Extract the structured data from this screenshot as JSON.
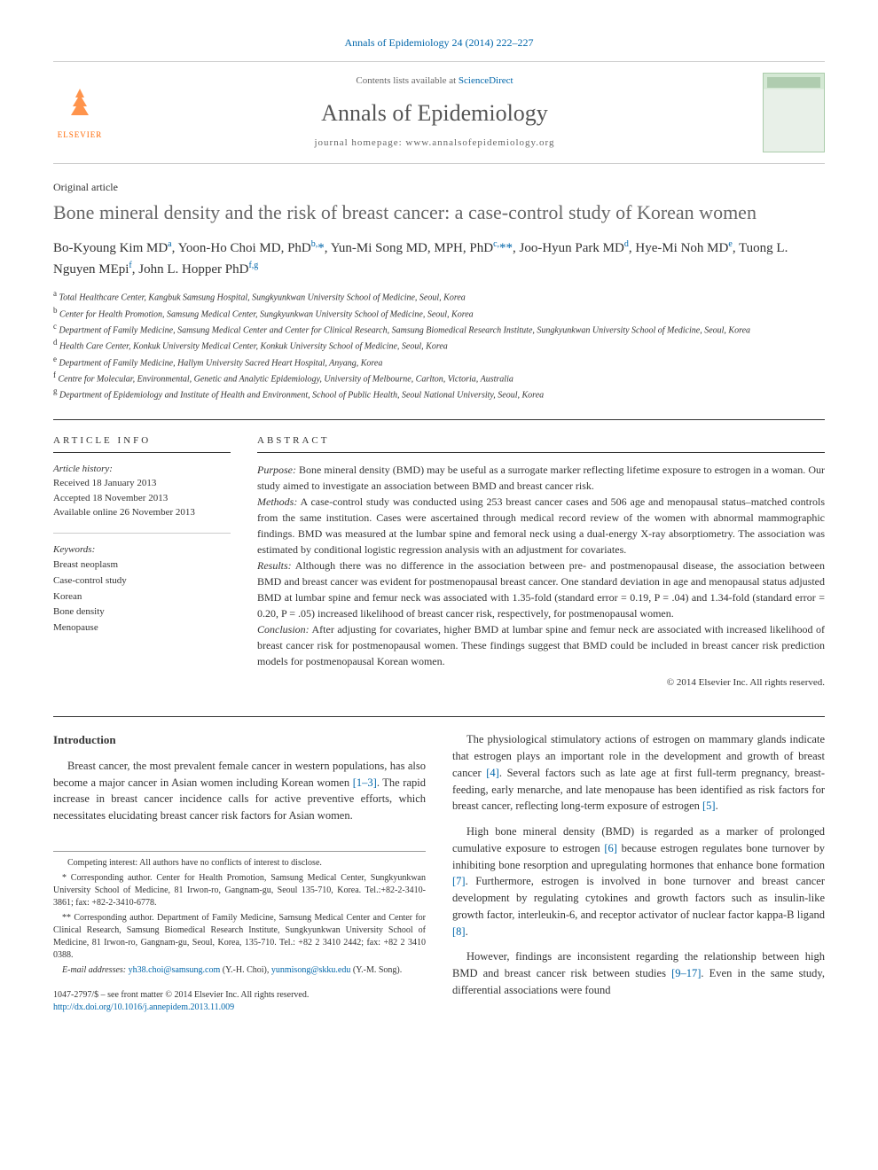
{
  "journal_ref": "Annals of Epidemiology 24 (2014) 222–227",
  "header": {
    "contents_prefix": "Contents lists available at ",
    "contents_link": "ScienceDirect",
    "journal_name": "Annals of Epidemiology",
    "homepage_prefix": "journal homepage: ",
    "homepage_url": "www.annalsofepidemiology.org",
    "elsevier": "ELSEVIER"
  },
  "article_type": "Original article",
  "title": "Bone mineral density and the risk of breast cancer: a case-control study of Korean women",
  "authors_html": "Bo-Kyoung Kim MD<sup>a</sup>, Yoon-Ho Choi MD, PhD<sup>b,</sup><span class='star'>*</span>, Yun-Mi Song MD, MPH, PhD<sup>c,</sup><span class='star'>**</span>, Joo-Hyun Park MD<sup>d</sup>, Hye-Mi Noh MD<sup>e</sup>, Tuong L. Nguyen MEpi<sup>f</sup>, John L. Hopper PhD<sup>f,g</sup>",
  "affiliations": [
    {
      "sup": "a",
      "text": "Total Healthcare Center, Kangbuk Samsung Hospital, Sungkyunkwan University School of Medicine, Seoul, Korea"
    },
    {
      "sup": "b",
      "text": "Center for Health Promotion, Samsung Medical Center, Sungkyunkwan University School of Medicine, Seoul, Korea"
    },
    {
      "sup": "c",
      "text": "Department of Family Medicine, Samsung Medical Center and Center for Clinical Research, Samsung Biomedical Research Institute, Sungkyunkwan University School of Medicine, Seoul, Korea"
    },
    {
      "sup": "d",
      "text": "Health Care Center, Konkuk University Medical Center, Konkuk University School of Medicine, Seoul, Korea"
    },
    {
      "sup": "e",
      "text": "Department of Family Medicine, Hallym University Sacred Heart Hospital, Anyang, Korea"
    },
    {
      "sup": "f",
      "text": "Centre for Molecular, Environmental, Genetic and Analytic Epidemiology, University of Melbourne, Carlton, Victoria, Australia"
    },
    {
      "sup": "g",
      "text": "Department of Epidemiology and Institute of Health and Environment, School of Public Health, Seoul National University, Seoul, Korea"
    }
  ],
  "info": {
    "header": "ARTICLE INFO",
    "history_label": "Article history:",
    "received": "Received 18 January 2013",
    "accepted": "Accepted 18 November 2013",
    "online": "Available online 26 November 2013",
    "keywords_label": "Keywords:",
    "keywords": [
      "Breast neoplasm",
      "Case-control study",
      "Korean",
      "Bone density",
      "Menopause"
    ]
  },
  "abstract": {
    "header": "ABSTRACT",
    "segments": [
      {
        "label": "Purpose:",
        "text": " Bone mineral density (BMD) may be useful as a surrogate marker reflecting lifetime exposure to estrogen in a woman. Our study aimed to investigate an association between BMD and breast cancer risk."
      },
      {
        "label": "Methods:",
        "text": " A case-control study was conducted using 253 breast cancer cases and 506 age and menopausal status–matched controls from the same institution. Cases were ascertained through medical record review of the women with abnormal mammographic findings. BMD was measured at the lumbar spine and femoral neck using a dual-energy X-ray absorptiometry. The association was estimated by conditional logistic regression analysis with an adjustment for covariates."
      },
      {
        "label": "Results:",
        "text": " Although there was no difference in the association between pre- and postmenopausal disease, the association between BMD and breast cancer was evident for postmenopausal breast cancer. One standard deviation in age and menopausal status adjusted BMD at lumbar spine and femur neck was associated with 1.35-fold (standard error = 0.19, P = .04) and 1.34-fold (standard error = 0.20, P = .05) increased likelihood of breast cancer risk, respectively, for postmenopausal women."
      },
      {
        "label": "Conclusion:",
        "text": " After adjusting for covariates, higher BMD at lumbar spine and femur neck are associated with increased likelihood of breast cancer risk for postmenopausal women. These findings suggest that BMD could be included in breast cancer risk prediction models for postmenopausal Korean women."
      }
    ],
    "copyright": "© 2014 Elsevier Inc. All rights reserved."
  },
  "intro": {
    "heading": "Introduction",
    "p1_a": "Breast cancer, the most prevalent female cancer in western populations, has also become a major cancer in Asian women including Korean women ",
    "p1_ref1": "[1–3]",
    "p1_b": ". The rapid increase in breast cancer incidence calls for active preventive efforts, which necessitates elucidating breast cancer risk factors for Asian women.",
    "p2_a": "The physiological stimulatory actions of estrogen on mammary glands indicate that estrogen plays an important role in the development and growth of breast cancer ",
    "p2_ref1": "[4]",
    "p2_b": ". Several factors such as late age at first full-term pregnancy, breast-feeding, early menarche, and late menopause has been identified as risk factors for breast cancer, reflecting long-term exposure of estrogen ",
    "p2_ref2": "[5]",
    "p2_c": ".",
    "p3_a": "High bone mineral density (BMD) is regarded as a marker of prolonged cumulative exposure to estrogen ",
    "p3_ref1": "[6]",
    "p3_b": " because estrogen regulates bone turnover by inhibiting bone resorption and upregulating hormones that enhance bone formation ",
    "p3_ref2": "[7]",
    "p3_c": ". Furthermore, estrogen is involved in bone turnover and breast cancer development by regulating cytokines and growth factors such as insulin-like growth factor, interleukin-6, and receptor activator of nuclear factor kappa-B ligand ",
    "p3_ref3": "[8]",
    "p3_d": ".",
    "p4_a": "However, findings are inconsistent regarding the relationship between high BMD and breast cancer risk between studies ",
    "p4_ref1": "[9–17]",
    "p4_b": ". Even in the same study, differential associations were found"
  },
  "footnotes": {
    "competing": "Competing interest: All authors have no conflicts of interest to disclose.",
    "corr1": "* Corresponding author. Center for Health Promotion, Samsung Medical Center, Sungkyunkwan University School of Medicine, 81 Irwon-ro, Gangnam-gu, Seoul 135-710, Korea. Tel.:+82-2-3410-3861; fax: +82-2-3410-6778.",
    "corr2": "** Corresponding author. Department of Family Medicine, Samsung Medical Center and Center for Clinical Research, Samsung Biomedical Research Institute, Sungkyunkwan University School of Medicine, 81 Irwon-ro, Gangnam-gu, Seoul, Korea, 135-710. Tel.: +82 2 3410 2442; fax: +82 2 3410 0388.",
    "email_label": "E-mail addresses: ",
    "email1": "yh38.choi@samsung.com",
    "email1_who": " (Y.-H. Choi), ",
    "email2": "yunmisong@skku.edu",
    "email2_who": " (Y.-M. Song)."
  },
  "bottom": {
    "issn": "1047-2797/$ – see front matter © 2014 Elsevier Inc. All rights reserved.",
    "doi": "http://dx.doi.org/10.1016/j.annepidem.2013.11.009"
  },
  "colors": {
    "link": "#0066aa",
    "elsevier": "#ff6600",
    "text": "#333333",
    "muted": "#666666"
  }
}
